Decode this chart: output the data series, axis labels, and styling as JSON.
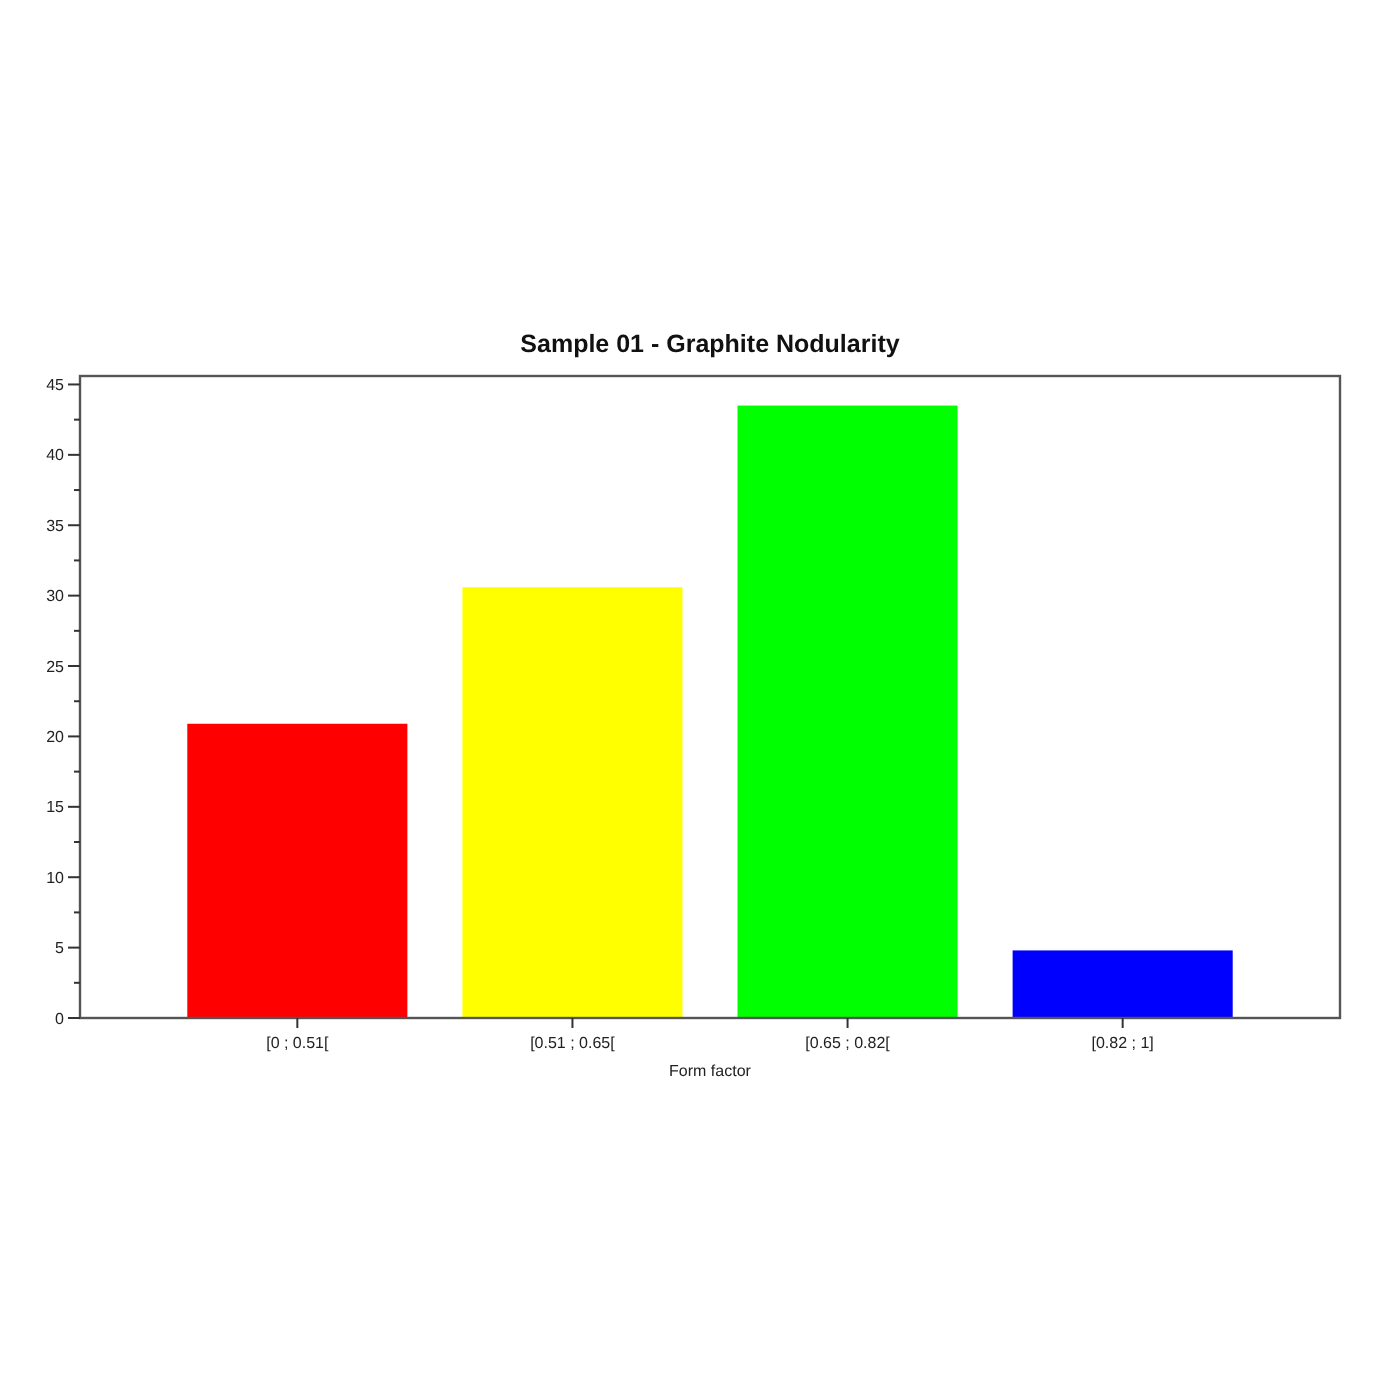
{
  "chart_data": {
    "type": "bar",
    "title": "Sample 01 - Graphite Nodularity",
    "xlabel": "Form factor",
    "categories": [
      "[0 ; 0.51[",
      "[0.51 ; 0.65[",
      "[0.65 ; 0.82[",
      "[0.82 ; 1]"
    ],
    "values": [
      20.9,
      30.6,
      43.5,
      4.8
    ],
    "colors": [
      "#ff0000",
      "#ffff00",
      "#00ff00",
      "#0000ff"
    ],
    "ylim": [
      0,
      45.6
    ],
    "yticks": [
      0,
      {
        "value": 2.5,
        "label": null
      },
      5,
      {
        "value": 7.5,
        "label": null
      },
      10,
      {
        "value": 12.5,
        "label": null
      },
      15,
      {
        "value": 17.5,
        "label": null
      },
      20,
      {
        "value": 22.5,
        "label": null
      },
      25,
      {
        "value": 27.5,
        "label": null
      },
      30,
      {
        "value": 32.5,
        "label": null
      },
      35,
      {
        "value": 37.5,
        "label": null
      },
      40,
      {
        "value": 42.5,
        "label": null
      },
      45
    ]
  }
}
